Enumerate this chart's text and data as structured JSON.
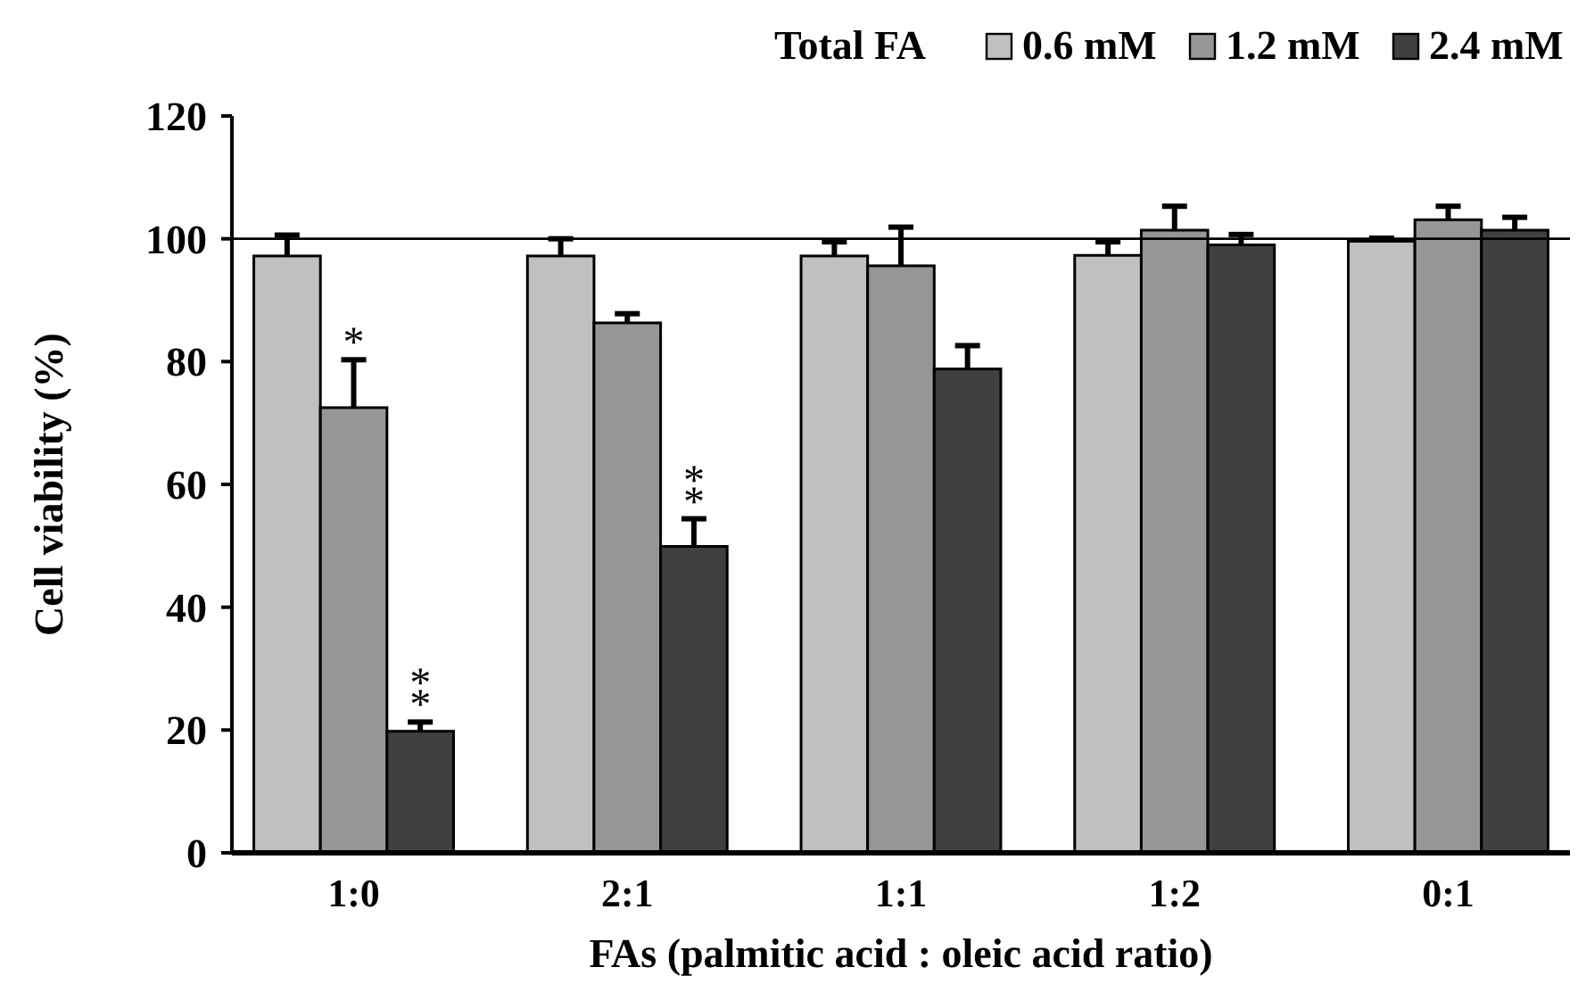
{
  "chart_data": {
    "type": "bar",
    "xlabel": "FAs (palmitic acid : oleic acid ratio)",
    "ylabel": "Cell viability (%)",
    "legend_title": "Total FA",
    "legend": "top right",
    "categories": [
      "1:0",
      "2:1",
      "1:1",
      "1:2",
      "0:1"
    ],
    "series": [
      {
        "name": "0.6 mM",
        "color": "#c0c0c0",
        "values": [
          97.2,
          97.2,
          97.2,
          97.3,
          99.6
        ],
        "errors": [
          3.4,
          2.8,
          2.3,
          2.2,
          0.5
        ]
      },
      {
        "name": "1.2 mM",
        "color": "#969696",
        "values": [
          72.5,
          86.3,
          95.6,
          101.4,
          103.1
        ],
        "errors": [
          7.8,
          1.5,
          6.3,
          3.9,
          2.2
        ]
      },
      {
        "name": "2.4 mM",
        "color": "#404040",
        "values": [
          19.8,
          49.9,
          78.8,
          99.0,
          101.4
        ],
        "errors": [
          1.5,
          4.5,
          3.8,
          1.7,
          2.1
        ]
      }
    ],
    "ylim": [
      0,
      120
    ],
    "yticks": [
      0,
      20,
      40,
      60,
      80,
      100,
      120
    ],
    "grid": false,
    "ref_lines": [
      {
        "axis": "y",
        "value": 100
      }
    ],
    "annotations": [
      {
        "text": "*",
        "x": "1:0",
        "y": 72.5
      },
      "**",
      "**"
    ]
  }
}
